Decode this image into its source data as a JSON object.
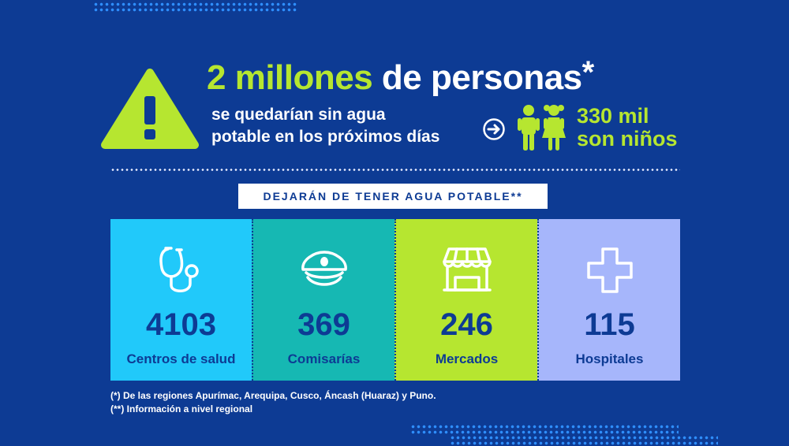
{
  "headline": {
    "highlight": "2 millones",
    "rest": "de personas",
    "star": "*"
  },
  "subtext": {
    "line1": "se quedarían sin agua",
    "line2": "potable en los próximos días"
  },
  "kids": {
    "line1": "330 mil",
    "line2": "son niños"
  },
  "banner": "DEJARÁN DE TENER AGUA POTABLE**",
  "cards": [
    {
      "number": "4103",
      "label": "Centros de salud",
      "icon": "stethoscope-icon",
      "color": "#21c9fa"
    },
    {
      "number": "369",
      "label": "Comisarías",
      "icon": "police-cap-icon",
      "color": "#16b8b3"
    },
    {
      "number": "246",
      "label": "Mercados",
      "icon": "market-stall-icon",
      "color": "#b6e630"
    },
    {
      "number": "115",
      "label": "Hospitales",
      "icon": "medical-cross-icon",
      "color": "#a6b6fb"
    }
  ],
  "footnotes": [
    "(*) De las regiones Apurímac, Arequipa, Cusco, Áncash (Huaraz) y Puno.",
    "(**) Información a nivel regional"
  ],
  "colors": {
    "background": "#0d3b94",
    "accent": "#b6e630",
    "dots": "#2f8fff"
  }
}
